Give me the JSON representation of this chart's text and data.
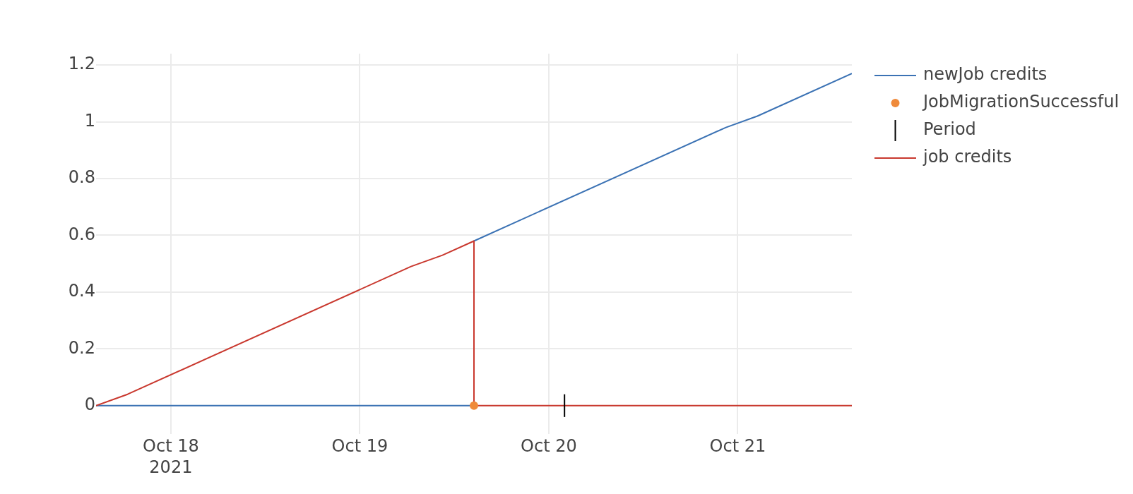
{
  "chart_data": {
    "type": "line",
    "xlim": [
      "2021-10-17T14:30",
      "2021-10-21T14:30"
    ],
    "xticks": [
      {
        "value": "2021-10-18",
        "label": "Oct 18\n2021"
      },
      {
        "value": "2021-10-19",
        "label": "Oct 19"
      },
      {
        "value": "2021-10-20",
        "label": "Oct 20"
      },
      {
        "value": "2021-10-21",
        "label": "Oct 21"
      }
    ],
    "ylim": [
      -0.1,
      1.24
    ],
    "yticks": [
      0,
      0.2,
      0.4,
      0.6,
      0.8,
      1,
      1.2
    ],
    "grid": true,
    "legend": "top right",
    "series": [
      {
        "name": "newJob credits",
        "color": "#3b72b4",
        "x": [
          "2021-10-17T14:30",
          "2021-10-19T14:30",
          "2021-10-19T14:30",
          "2021-10-20T22:30",
          "2021-10-21T02:30",
          "2021-10-21T14:30"
        ],
        "values": [
          0,
          0,
          0.58,
          0.98,
          1.02,
          1.17
        ]
      },
      {
        "name": "JobMigrationSuccessful",
        "type": "scatter",
        "marker": "circle",
        "color": "#ef8a3a",
        "x": [
          "2021-10-19T14:30"
        ],
        "values": [
          0
        ]
      },
      {
        "name": "Period",
        "color": "#000000",
        "x": [
          "2021-10-20T02:00",
          "2021-10-20T02:00"
        ],
        "values": [
          -0.04,
          0.04
        ]
      },
      {
        "name": "job credits",
        "color": "#c9382e",
        "x": [
          "2021-10-17T14:30",
          "2021-10-17T18:30",
          "2021-10-19T06:30",
          "2021-10-19T10:30",
          "2021-10-19T14:30",
          "2021-10-19T14:30",
          "2021-10-21T14:30"
        ],
        "values": [
          0,
          0.04,
          0.49,
          0.53,
          0.58,
          0,
          0
        ]
      }
    ]
  }
}
